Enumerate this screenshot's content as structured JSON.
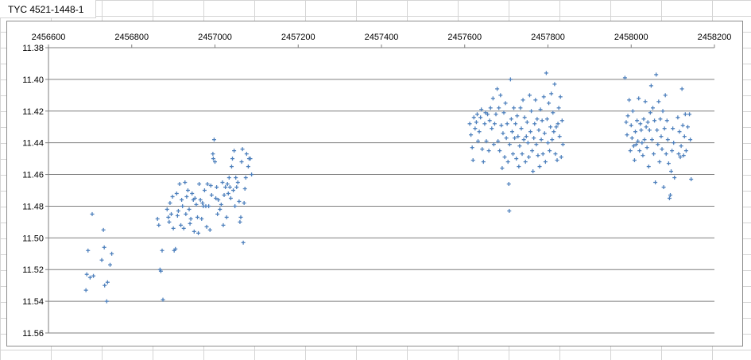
{
  "sheet": {
    "title": "TYC 4521-1448-1"
  },
  "colors": {
    "marker": "#4f81bd",
    "gridline": "#7f7f7f",
    "axis": "#7f7f7f"
  },
  "chart_data": {
    "type": "scatter",
    "title": "",
    "xlabel": "",
    "ylabel": "",
    "xlim": [
      2456600,
      2458200
    ],
    "ylim": [
      11.38,
      11.56
    ],
    "y_reversed": true,
    "x_axis_position": "top",
    "grid": {
      "horizontal": true,
      "vertical": false
    },
    "legend": "none",
    "x_ticks": [
      "2456600",
      "2456800",
      "2457000",
      "2457200",
      "2457400",
      "2457600",
      "2457800",
      "2458000",
      "2458200"
    ],
    "y_ticks": [
      "11.38",
      "11.40",
      "11.42",
      "11.44",
      "11.46",
      "11.48",
      "11.50",
      "11.52",
      "11.54",
      "11.56"
    ],
    "series": [
      {
        "marker": "plus",
        "points": [
          [
            2456690,
            11.533
          ],
          [
            2456692,
            11.523
          ],
          [
            2456695,
            11.508
          ],
          [
            2456700,
            11.525
          ],
          [
            2456705,
            11.485
          ],
          [
            2456708,
            11.524
          ],
          [
            2456728,
            11.514
          ],
          [
            2456732,
            11.495
          ],
          [
            2456734,
            11.506
          ],
          [
            2456735,
            11.53
          ],
          [
            2456740,
            11.54
          ],
          [
            2456742,
            11.528
          ],
          [
            2456748,
            11.517
          ],
          [
            2456752,
            11.51
          ],
          [
            2456862,
            11.488
          ],
          [
            2456865,
            11.492
          ],
          [
            2456868,
            11.52
          ],
          [
            2456870,
            11.521
          ],
          [
            2456873,
            11.508
          ],
          [
            2456875,
            11.539
          ],
          [
            2456885,
            11.482
          ],
          [
            2456888,
            11.487
          ],
          [
            2456890,
            11.49
          ],
          [
            2456892,
            11.478
          ],
          [
            2456895,
            11.485
          ],
          [
            2456898,
            11.474
          ],
          [
            2456900,
            11.494
          ],
          [
            2456902,
            11.508
          ],
          [
            2456905,
            11.507
          ],
          [
            2456908,
            11.472
          ],
          [
            2456910,
            11.486
          ],
          [
            2456912,
            11.483
          ],
          [
            2456915,
            11.466
          ],
          [
            2456918,
            11.492
          ],
          [
            2456920,
            11.476
          ],
          [
            2456922,
            11.48
          ],
          [
            2456925,
            11.494
          ],
          [
            2456928,
            11.465
          ],
          [
            2456930,
            11.485
          ],
          [
            2456932,
            11.474
          ],
          [
            2456935,
            11.47
          ],
          [
            2456938,
            11.482
          ],
          [
            2456940,
            11.491
          ],
          [
            2456942,
            11.488
          ],
          [
            2456945,
            11.472
          ],
          [
            2456948,
            11.476
          ],
          [
            2456950,
            11.496
          ],
          [
            2456952,
            11.475
          ],
          [
            2456955,
            11.479
          ],
          [
            2456958,
            11.487
          ],
          [
            2456960,
            11.497
          ],
          [
            2456962,
            11.466
          ],
          [
            2456965,
            11.476
          ],
          [
            2456968,
            11.488
          ],
          [
            2456970,
            11.478
          ],
          [
            2456972,
            11.48
          ],
          [
            2456975,
            11.47
          ],
          [
            2456978,
            11.48
          ],
          [
            2456980,
            11.493
          ],
          [
            2456982,
            11.466
          ],
          [
            2456985,
            11.48
          ],
          [
            2456988,
            11.495
          ],
          [
            2456990,
            11.467
          ],
          [
            2456992,
            11.473
          ],
          [
            2456995,
            11.447
          ],
          [
            2456996,
            11.45
          ],
          [
            2456998,
            11.438
          ],
          [
            2457000,
            11.452
          ],
          [
            2457002,
            11.475
          ],
          [
            2457004,
            11.468
          ],
          [
            2457006,
            11.485
          ],
          [
            2457008,
            11.476
          ],
          [
            2457012,
            11.482
          ],
          [
            2457015,
            11.479
          ],
          [
            2457018,
            11.465
          ],
          [
            2457020,
            11.492
          ],
          [
            2457022,
            11.473
          ],
          [
            2457025,
            11.468
          ],
          [
            2457028,
            11.487
          ],
          [
            2457030,
            11.466
          ],
          [
            2457032,
            11.472
          ],
          [
            2457034,
            11.462
          ],
          [
            2457036,
            11.468
          ],
          [
            2457038,
            11.475
          ],
          [
            2457040,
            11.455
          ],
          [
            2457042,
            11.45
          ],
          [
            2457044,
            11.47
          ],
          [
            2457046,
            11.445
          ],
          [
            2457048,
            11.48
          ],
          [
            2457050,
            11.462
          ],
          [
            2457052,
            11.468
          ],
          [
            2457055,
            11.465
          ],
          [
            2457058,
            11.477
          ],
          [
            2457060,
            11.49
          ],
          [
            2457062,
            11.487
          ],
          [
            2457064,
            11.452
          ],
          [
            2457066,
            11.444
          ],
          [
            2457068,
            11.503
          ],
          [
            2457070,
            11.478
          ],
          [
            2457072,
            11.469
          ],
          [
            2457074,
            11.462
          ],
          [
            2457076,
            11.447
          ],
          [
            2457080,
            11.455
          ],
          [
            2457082,
            11.45
          ],
          [
            2457085,
            11.45
          ],
          [
            2457088,
            11.46
          ],
          [
            2457612,
            11.428
          ],
          [
            2457615,
            11.435
          ],
          [
            2457618,
            11.443
          ],
          [
            2457620,
            11.451
          ],
          [
            2457622,
            11.424
          ],
          [
            2457625,
            11.431
          ],
          [
            2457628,
            11.427
          ],
          [
            2457630,
            11.422
          ],
          [
            2457632,
            11.439
          ],
          [
            2457635,
            11.433
          ],
          [
            2457638,
            11.424
          ],
          [
            2457640,
            11.419
          ],
          [
            2457642,
            11.444
          ],
          [
            2457645,
            11.452
          ],
          [
            2457648,
            11.428
          ],
          [
            2457650,
            11.421
          ],
          [
            2457652,
            11.439
          ],
          [
            2457655,
            11.422
          ],
          [
            2457658,
            11.445
          ],
          [
            2457660,
            11.426
          ],
          [
            2457662,
            11.418
          ],
          [
            2457665,
            11.431
          ],
          [
            2457668,
            11.412
          ],
          [
            2457670,
            11.441
          ],
          [
            2457672,
            11.428
          ],
          [
            2457675,
            11.422
          ],
          [
            2457678,
            11.406
          ],
          [
            2457680,
            11.439
          ],
          [
            2457682,
            11.418
          ],
          [
            2457684,
            11.445
          ],
          [
            2457686,
            11.41
          ],
          [
            2457688,
            11.429
          ],
          [
            2457690,
            11.456
          ],
          [
            2457692,
            11.434
          ],
          [
            2457694,
            11.421
          ],
          [
            2457696,
            11.449
          ],
          [
            2457698,
            11.415
          ],
          [
            2457700,
            11.437
          ],
          [
            2457702,
            11.428
          ],
          [
            2457704,
            11.452
          ],
          [
            2457706,
            11.466
          ],
          [
            2457707,
            11.483
          ],
          [
            2457708,
            11.441
          ],
          [
            2457710,
            11.4
          ],
          [
            2457712,
            11.425
          ],
          [
            2457714,
            11.433
          ],
          [
            2457716,
            11.447
          ],
          [
            2457718,
            11.418
          ],
          [
            2457720,
            11.437
          ],
          [
            2457722,
            11.428
          ],
          [
            2457724,
            11.45
          ],
          [
            2457726,
            11.423
          ],
          [
            2457728,
            11.436
          ],
          [
            2457730,
            11.455
          ],
          [
            2457732,
            11.442
          ],
          [
            2457734,
            11.418
          ],
          [
            2457736,
            11.431
          ],
          [
            2457738,
            11.447
          ],
          [
            2457740,
            11.413
          ],
          [
            2457742,
            11.438
          ],
          [
            2457744,
            11.424
          ],
          [
            2457746,
            11.452
          ],
          [
            2457748,
            11.436
          ],
          [
            2457750,
            11.427
          ],
          [
            2457752,
            11.44
          ],
          [
            2457754,
            11.449
          ],
          [
            2457756,
            11.41
          ],
          [
            2457758,
            11.433
          ],
          [
            2457760,
            11.42
          ],
          [
            2457762,
            11.445
          ],
          [
            2457764,
            11.458
          ],
          [
            2457766,
            11.437
          ],
          [
            2457768,
            11.428
          ],
          [
            2457770,
            11.413
          ],
          [
            2457772,
            11.441
          ],
          [
            2457774,
            11.425
          ],
          [
            2457776,
            11.448
          ],
          [
            2457778,
            11.432
          ],
          [
            2457780,
            11.455
          ],
          [
            2457782,
            11.419
          ],
          [
            2457784,
            11.438
          ],
          [
            2457786,
            11.426
          ],
          [
            2457788,
            11.447
          ],
          [
            2457790,
            11.411
          ],
          [
            2457792,
            11.434
          ],
          [
            2457794,
            11.452
          ],
          [
            2457796,
            11.396
          ],
          [
            2457798,
            11.425
          ],
          [
            2457800,
            11.44
          ],
          [
            2457802,
            11.415
          ],
          [
            2457804,
            11.445
          ],
          [
            2457806,
            11.43
          ],
          [
            2457808,
            11.409
          ],
          [
            2457810,
            11.438
          ],
          [
            2457812,
            11.421
          ],
          [
            2457814,
            11.433
          ],
          [
            2457816,
            11.403
          ],
          [
            2457818,
            11.447
          ],
          [
            2457820,
            11.43
          ],
          [
            2457822,
            11.451
          ],
          [
            2457824,
            11.428
          ],
          [
            2457826,
            11.418
          ],
          [
            2457828,
            11.436
          ],
          [
            2457830,
            11.411
          ],
          [
            2457832,
            11.449
          ],
          [
            2457834,
            11.426
          ],
          [
            2457836,
            11.441
          ],
          [
            2457985,
            11.399
          ],
          [
            2457988,
            11.427
          ],
          [
            2457990,
            11.435
          ],
          [
            2457992,
            11.423
          ],
          [
            2457995,
            11.413
          ],
          [
            2457998,
            11.445
          ],
          [
            2458000,
            11.429
          ],
          [
            2458002,
            11.437
          ],
          [
            2458004,
            11.42
          ],
          [
            2458006,
            11.442
          ],
          [
            2458008,
            11.451
          ],
          [
            2458010,
            11.433
          ],
          [
            2458012,
            11.441
          ],
          [
            2458014,
            11.426
          ],
          [
            2458016,
            11.439
          ],
          [
            2458018,
            11.412
          ],
          [
            2458020,
            11.445
          ],
          [
            2458022,
            11.428
          ],
          [
            2458024,
            11.432
          ],
          [
            2458026,
            11.44
          ],
          [
            2458028,
            11.448
          ],
          [
            2458030,
            11.425
          ],
          [
            2458032,
            11.438
          ],
          [
            2458034,
            11.414
          ],
          [
            2458036,
            11.43
          ],
          [
            2458038,
            11.443
          ],
          [
            2458040,
            11.427
          ],
          [
            2458042,
            11.455
          ],
          [
            2458044,
            11.432
          ],
          [
            2458046,
            11.421
          ],
          [
            2458048,
            11.404
          ],
          [
            2458050,
            11.438
          ],
          [
            2458052,
            11.418
          ],
          [
            2458054,
            11.447
          ],
          [
            2458056,
            11.426
          ],
          [
            2458058,
            11.465
          ],
          [
            2458060,
            11.397
          ],
          [
            2458062,
            11.432
          ],
          [
            2458064,
            11.441
          ],
          [
            2458066,
            11.414
          ],
          [
            2458068,
            11.452
          ],
          [
            2458070,
            11.425
          ],
          [
            2458072,
            11.436
          ],
          [
            2458074,
            11.444
          ],
          [
            2458076,
            11.42
          ],
          [
            2458078,
            11.468
          ],
          [
            2458080,
            11.431
          ],
          [
            2458082,
            11.41
          ],
          [
            2458084,
            11.447
          ],
          [
            2458086,
            11.426
          ],
          [
            2458088,
            11.438
          ],
          [
            2458090,
            11.453
          ],
          [
            2458092,
            11.475
          ],
          [
            2458094,
            11.473
          ],
          [
            2458096,
            11.458
          ],
          [
            2458098,
            11.445
          ],
          [
            2458100,
            11.431
          ],
          [
            2458102,
            11.44
          ],
          [
            2458104,
            11.462
          ],
          [
            2458112,
            11.424
          ],
          [
            2458114,
            11.447
          ],
          [
            2458116,
            11.433
          ],
          [
            2458118,
            11.449
          ],
          [
            2458120,
            11.442
          ],
          [
            2458122,
            11.406
          ],
          [
            2458124,
            11.429
          ],
          [
            2458126,
            11.448
          ],
          [
            2458128,
            11.436
          ],
          [
            2458130,
            11.422
          ],
          [
            2458132,
            11.445
          ],
          [
            2458136,
            11.43
          ],
          [
            2458140,
            11.422
          ],
          [
            2458142,
            11.438
          ],
          [
            2458144,
            11.463
          ]
        ]
      }
    ]
  }
}
